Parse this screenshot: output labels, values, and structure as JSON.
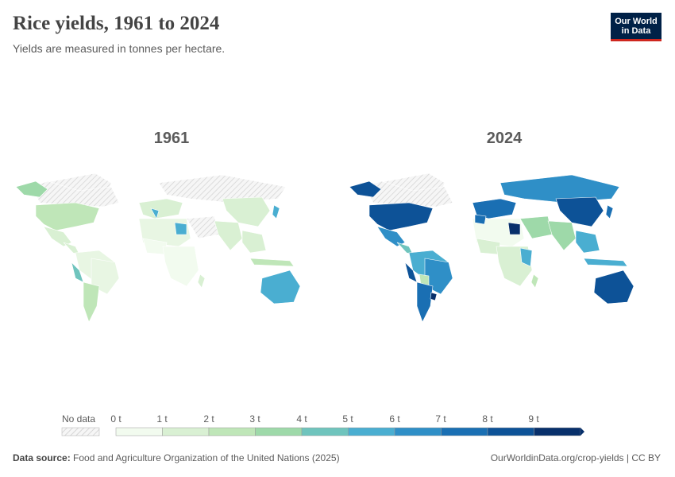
{
  "header": {
    "title": "Rice yields, 1961 to 2024",
    "subtitle": "Yields are measured in tonnes per hectare."
  },
  "logo": {
    "line1": "Our World",
    "line2": "in Data"
  },
  "maps": [
    {
      "year_label": "1961"
    },
    {
      "year_label": "2024"
    }
  ],
  "legend": {
    "no_data_label": "No data",
    "bins": [
      "0 t",
      "1 t",
      "2 t",
      "3 t",
      "4 t",
      "5 t",
      "6 t",
      "7 t",
      "8 t",
      "9 t"
    ],
    "colors": [
      "#f2fbef",
      "#d9f0d3",
      "#bfe6b8",
      "#9ed9a9",
      "#6fc4bd",
      "#4aaed1",
      "#2f8fc7",
      "#1a6fb3",
      "#0d5297",
      "#08306b"
    ],
    "no_data_color": "#e3e3e3"
  },
  "footer": {
    "source_label": "Data source:",
    "source_text": "Food and Agriculture Organization of the United Nations (2025)",
    "url_text": "OurWorldinData.org/crop-yields | CC BY"
  }
}
